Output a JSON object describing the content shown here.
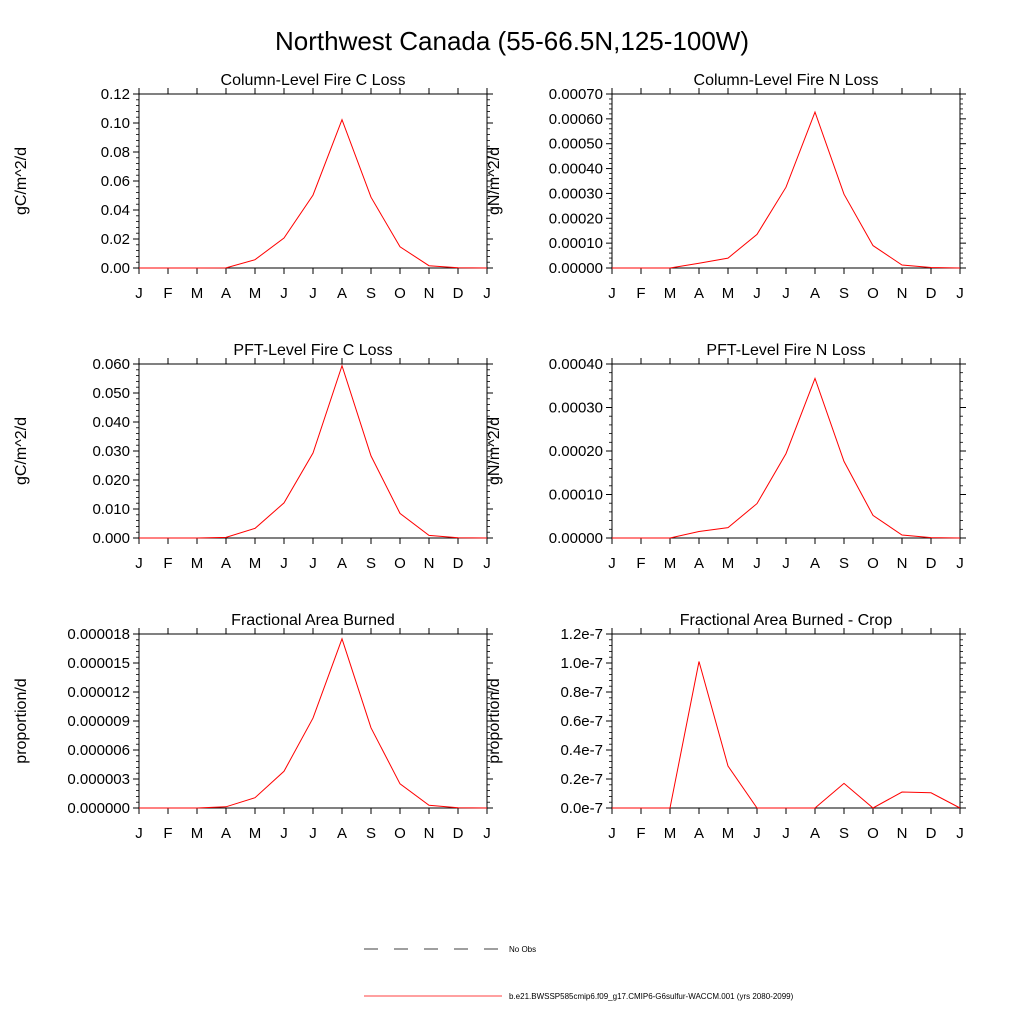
{
  "figure": {
    "title": "Northwest Canada (55-66.5N,125-100W)"
  },
  "legend": {
    "entries": [
      {
        "label": "No Obs",
        "style": "dashed",
        "color": "#000000"
      },
      {
        "label": "b.e21.BWSSP585cmip6.f09_g17.CMIP6-G6sulfur-WACCM.001 (yrs 2080-2099)",
        "style": "solid",
        "color": "#ff0000"
      }
    ]
  },
  "chart_data": [
    {
      "type": "line",
      "title": "Column-Level Fire C Loss",
      "xlabel": "",
      "ylabel": "gC/m^2/d",
      "categories": [
        "J",
        "F",
        "M",
        "A",
        "M",
        "J",
        "J",
        "A",
        "S",
        "O",
        "N",
        "D",
        "J"
      ],
      "ylim": [
        0,
        0.12
      ],
      "yticks": [
        "0.00",
        "0.02",
        "0.04",
        "0.06",
        "0.08",
        "0.10",
        "0.12"
      ],
      "ytick_values": [
        0,
        0.02,
        0.04,
        0.06,
        0.08,
        0.1,
        0.12
      ],
      "series": [
        {
          "color": "#ff0000",
          "values": [
            0,
            0,
            0,
            0.0001,
            0.0057,
            0.0207,
            0.0503,
            0.1023,
            0.0488,
            0.0146,
            0.0016,
            0.0002,
            0
          ]
        }
      ]
    },
    {
      "type": "line",
      "title": "Column-Level Fire N Loss",
      "xlabel": "",
      "ylabel": "gN/m^2/d",
      "categories": [
        "J",
        "F",
        "M",
        "A",
        "M",
        "J",
        "J",
        "A",
        "S",
        "O",
        "N",
        "D",
        "J"
      ],
      "ylim": [
        0,
        0.0007
      ],
      "yticks": [
        "0.00000",
        "0.00010",
        "0.00020",
        "0.00030",
        "0.00040",
        "0.00050",
        "0.00060",
        "0.00070"
      ],
      "ytick_values": [
        0,
        0.0001,
        0.0002,
        0.0003,
        0.0004,
        0.0005,
        0.0006,
        0.0007
      ],
      "series": [
        {
          "color": "#ff0000",
          "values": [
            0,
            0,
            0,
            1.9e-05,
            4e-05,
            0.000135,
            0.000325,
            0.000627,
            0.000297,
            9e-05,
            1.2e-05,
            2e-06,
            0
          ]
        }
      ]
    },
    {
      "type": "line",
      "title": "PFT-Level Fire C Loss",
      "xlabel": "",
      "ylabel": "gC/m^2/d",
      "categories": [
        "J",
        "F",
        "M",
        "A",
        "M",
        "J",
        "J",
        "A",
        "S",
        "O",
        "N",
        "D",
        "J"
      ],
      "ylim": [
        0,
        0.06
      ],
      "yticks": [
        "0.000",
        "0.010",
        "0.020",
        "0.030",
        "0.040",
        "0.050",
        "0.060"
      ],
      "ytick_values": [
        0,
        0.01,
        0.02,
        0.03,
        0.04,
        0.05,
        0.06
      ],
      "series": [
        {
          "color": "#ff0000",
          "values": [
            0,
            0,
            0,
            0.0002,
            0.0033,
            0.0121,
            0.0293,
            0.0594,
            0.0283,
            0.0085,
            0.0009,
            0.0001,
            0
          ]
        }
      ]
    },
    {
      "type": "line",
      "title": "PFT-Level Fire N Loss",
      "xlabel": "",
      "ylabel": "gN/m^2/d",
      "categories": [
        "J",
        "F",
        "M",
        "A",
        "M",
        "J",
        "J",
        "A",
        "S",
        "O",
        "N",
        "D",
        "J"
      ],
      "ylim": [
        0,
        0.0004
      ],
      "yticks": [
        "0.00000",
        "0.00010",
        "0.00020",
        "0.00030",
        "0.00040"
      ],
      "ytick_values": [
        0,
        0.0001,
        0.0002,
        0.0003,
        0.0004
      ],
      "series": [
        {
          "color": "#ff0000",
          "values": [
            0,
            0,
            0,
            1.5e-05,
            2.4e-05,
            7.9e-05,
            0.000194,
            0.000367,
            0.000176,
            5.2e-05,
            7e-06,
            1e-06,
            0
          ]
        }
      ]
    },
    {
      "type": "line",
      "title": "Fractional Area Burned",
      "xlabel": "",
      "ylabel": "proportion/d",
      "categories": [
        "J",
        "F",
        "M",
        "A",
        "M",
        "J",
        "J",
        "A",
        "S",
        "O",
        "N",
        "D",
        "J"
      ],
      "ylim": [
        0,
        1.8e-05
      ],
      "yticks": [
        "0.000000",
        "0.000003",
        "0.000006",
        "0.000009",
        "0.000012",
        "0.000015",
        "0.000018"
      ],
      "ytick_values": [
        0,
        3e-06,
        6e-06,
        9e-06,
        1.2e-05,
        1.5e-05,
        1.8e-05
      ],
      "series": [
        {
          "color": "#ff0000",
          "values": [
            0,
            0,
            0,
            1.2e-07,
            1.07e-06,
            3.8e-06,
            9.3e-06,
            1.75e-05,
            8.3e-06,
            2.5e-06,
            2.8e-07,
            3e-08,
            0
          ]
        }
      ]
    },
    {
      "type": "line",
      "title": "Fractional Area Burned - Crop",
      "xlabel": "",
      "ylabel": "proportion/d",
      "categories": [
        "J",
        "F",
        "M",
        "A",
        "M",
        "J",
        "J",
        "A",
        "S",
        "O",
        "N",
        "D",
        "J"
      ],
      "ylim": [
        0,
        1.2e-07
      ],
      "yticks": [
        "0.0e-7",
        "0.2e-7",
        "0.4e-7",
        "0.6e-7",
        "0.8e-7",
        "1.0e-7",
        "1.2e-7"
      ],
      "ytick_values": [
        0,
        2e-08,
        4e-08,
        6e-08,
        8e-08,
        1e-07,
        1.2e-07
      ],
      "series": [
        {
          "color": "#ff0000",
          "values": [
            0,
            0,
            0,
            1.01e-07,
            2.9e-08,
            0,
            0,
            0,
            1.7e-08,
            0,
            1.1e-08,
            1.05e-08,
            0
          ]
        }
      ]
    }
  ]
}
